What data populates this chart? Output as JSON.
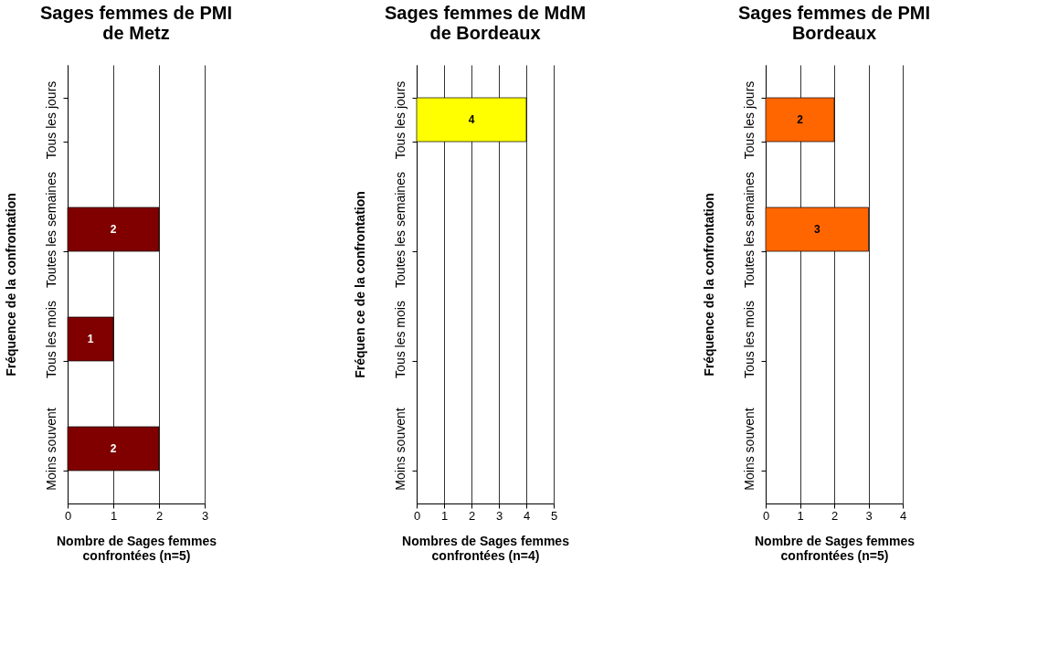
{
  "chart_data": [
    {
      "type": "bar",
      "orientation": "horizontal",
      "title": "Sages femmes de PMI de Metz",
      "xlabel": "Nombre de Sages femmes confrontées (n=5)",
      "ylabel": "Fréquence de la confrontation",
      "categories": [
        "Tous les jours",
        "Toutes les semaines",
        "Tous les mois",
        "Moins souvent"
      ],
      "values": [
        null,
        2,
        1,
        2
      ],
      "color": "#800000",
      "xlim": [
        0,
        3
      ],
      "xticks": [
        0,
        1,
        2,
        3
      ],
      "grid": "x",
      "data_labels": true
    },
    {
      "type": "bar",
      "orientation": "horizontal",
      "title": "Sages femmes de MdM de Bordeaux",
      "xlabel": "Nombres de Sages femmes confrontées (n=4)",
      "ylabel": "Fréquen ce de la confrontation",
      "categories": [
        "Tous les jours",
        "Toutes les semaines",
        "Tous les mois",
        "Moins souvent"
      ],
      "values": [
        4,
        null,
        null,
        null
      ],
      "color": "#ffff00",
      "xlim": [
        0,
        5
      ],
      "xticks": [
        0,
        1,
        2,
        3,
        4,
        5
      ],
      "grid": "x",
      "data_labels": true
    },
    {
      "type": "bar",
      "orientation": "horizontal",
      "title": "Sages femmes de PMI Bordeaux",
      "xlabel": "Nombre de Sages femmes confrontées (n=5)",
      "ylabel": "Fréquence de la confrontation",
      "categories": [
        "Tous les jours",
        "Toutes les semaines",
        "Tous les mois",
        "Moins souvent"
      ],
      "values": [
        2,
        3,
        null,
        null
      ],
      "color": "#ff6600",
      "xlim": [
        0,
        4
      ],
      "xticks": [
        0,
        1,
        2,
        3,
        4
      ],
      "grid": "x",
      "data_labels": true
    }
  ]
}
